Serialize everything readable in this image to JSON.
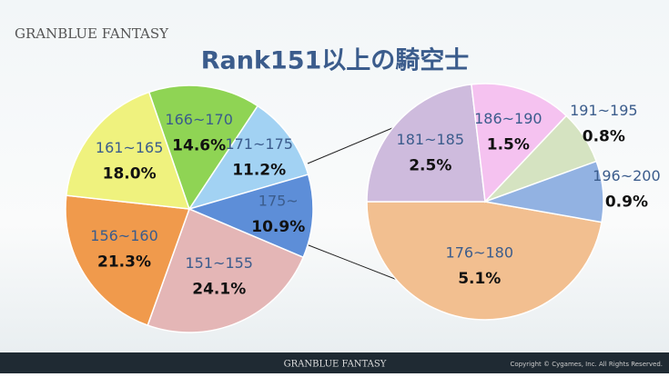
{
  "header": {
    "logo": "GRANBLUE FANTASY"
  },
  "footer": {
    "logo": "GRANBLUE FANTASY",
    "copyright": "Copyright © Cygames, Inc. All Rights Reserved."
  },
  "chart_data": [
    {
      "type": "pie",
      "title": "Rank151以上の騎空士",
      "categories": [
        "151~155",
        "156~160",
        "161~165",
        "166~170",
        "171~175",
        "175~"
      ],
      "values": [
        24.1,
        21.3,
        18.0,
        14.6,
        11.2,
        10.9
      ],
      "value_labels": [
        "24.1%",
        "21.3%",
        "18.0%",
        "14.6%",
        "11.2%",
        "10.9%"
      ],
      "colors": [
        "#e4b6b6",
        "#f09a4c",
        "#eff27e",
        "#8fd454",
        "#a2d2f3",
        "#5d8ed8"
      ]
    },
    {
      "type": "pie",
      "categories": [
        "176~180",
        "181~185",
        "186~190",
        "191~195",
        "196~200"
      ],
      "values": [
        5.1,
        2.5,
        1.5,
        0.8,
        0.9
      ],
      "value_labels": [
        "5.1%",
        "2.5%",
        "1.5%",
        "0.8%",
        "0.9%"
      ],
      "colors": [
        "#f2bf90",
        "#cebbdd",
        "#f5c2f0",
        "#d5e3c1",
        "#92b2e2"
      ]
    }
  ]
}
